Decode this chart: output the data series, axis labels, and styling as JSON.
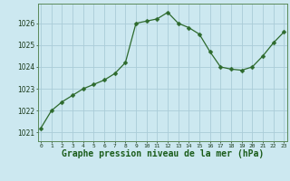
{
  "x": [
    0,
    1,
    2,
    3,
    4,
    5,
    6,
    7,
    8,
    9,
    10,
    11,
    12,
    13,
    14,
    15,
    16,
    17,
    18,
    19,
    20,
    21,
    22,
    23
  ],
  "y": [
    1021.2,
    1022.0,
    1022.4,
    1022.7,
    1023.0,
    1023.2,
    1023.4,
    1023.7,
    1024.2,
    1026.0,
    1026.1,
    1026.2,
    1026.5,
    1026.0,
    1025.8,
    1025.5,
    1024.7,
    1024.0,
    1023.9,
    1023.85,
    1024.0,
    1024.5,
    1025.1,
    1025.6
  ],
  "line_color": "#2d6a2d",
  "marker": "D",
  "marker_size": 2.5,
  "background_color": "#cce8f0",
  "grid_color": "#aaccd8",
  "xlabel": "Graphe pression niveau de la mer (hPa)",
  "xlabel_fontsize": 7,
  "xlabel_color": "#1a5c1a",
  "ytick_labels": [
    1021,
    1022,
    1023,
    1024,
    1025,
    1026
  ],
  "ylim": [
    1020.6,
    1026.9
  ],
  "xlim": [
    -0.3,
    23.3
  ],
  "xtick_labels": [
    "0",
    "1",
    "2",
    "3",
    "4",
    "5",
    "6",
    "7",
    "8",
    "9",
    "10",
    "11",
    "12",
    "13",
    "14",
    "15",
    "16",
    "17",
    "18",
    "19",
    "20",
    "21",
    "22",
    "23"
  ]
}
